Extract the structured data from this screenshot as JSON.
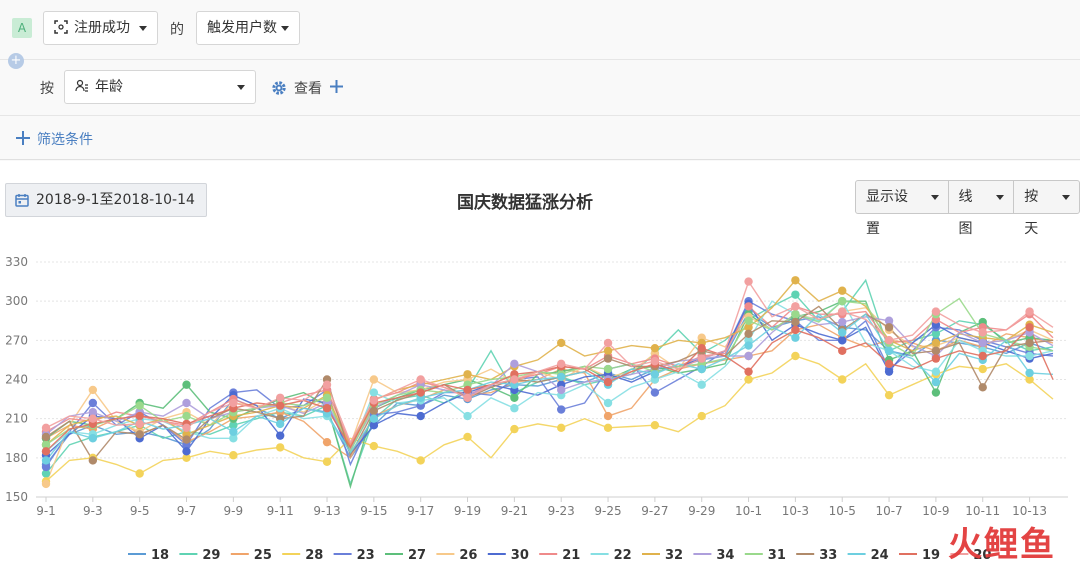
{
  "toolbar": {
    "badge": "A",
    "event_select": "注册成功",
    "of_label": "的",
    "metric_select": "触发用户数",
    "by_label": "按",
    "group_select": "年龄",
    "view_label": "查看",
    "filter_label": "筛选条件"
  },
  "controls": {
    "date_range": "2018-9-1至2018-10-14",
    "display_settings": "显示设置",
    "chart_type": "线图",
    "granularity": "按天"
  },
  "watermark": "火鲤鱼",
  "chart_data": {
    "type": "line",
    "title": "国庆数据猛涨分析",
    "xlabel": "",
    "ylabel": "",
    "ylim": [
      150,
      330
    ],
    "yticks": [
      150,
      180,
      210,
      240,
      270,
      300,
      330
    ],
    "grid": true,
    "legend_position": "bottom",
    "x": [
      "9-1",
      "9-2",
      "9-3",
      "9-4",
      "9-5",
      "9-6",
      "9-7",
      "9-8",
      "9-9",
      "9-10",
      "9-11",
      "9-12",
      "9-13",
      "9-14",
      "9-15",
      "9-16",
      "9-17",
      "9-18",
      "9-19",
      "9-20",
      "9-21",
      "9-22",
      "9-23",
      "9-24",
      "9-25",
      "9-26",
      "9-27",
      "9-28",
      "9-29",
      "9-30",
      "10-1",
      "10-2",
      "10-3",
      "10-4",
      "10-5",
      "10-6",
      "10-7",
      "10-8",
      "10-9",
      "10-10",
      "10-11",
      "10-12",
      "10-13",
      "10-14"
    ],
    "xticks": [
      "9-1",
      "9-3",
      "9-5",
      "9-7",
      "9-9",
      "9-11",
      "9-13",
      "9-15",
      "9-17",
      "9-19",
      "9-21",
      "9-23",
      "9-25",
      "9-27",
      "9-29",
      "10-1",
      "10-3",
      "10-5",
      "10-7",
      "10-9",
      "10-11",
      "10-13"
    ],
    "series": [
      {
        "name": "18",
        "color": "#5b9bd5",
        "values": [
          175,
          198,
          205,
          198,
          200,
          196,
          190,
          202,
          225,
          218,
          210,
          218,
          215,
          180,
          205,
          222,
          220,
          228,
          225,
          232,
          236,
          235,
          240,
          238,
          245,
          240,
          248,
          250,
          255,
          258,
          292,
          280,
          285,
          288,
          280,
          278,
          262,
          258,
          270,
          268,
          265,
          260,
          268,
          262
        ]
      },
      {
        "name": "29",
        "color": "#5fd3b3",
        "values": [
          168,
          190,
          196,
          200,
          205,
          195,
          200,
          198,
          205,
          210,
          215,
          212,
          220,
          160,
          210,
          225,
          228,
          222,
          232,
          262,
          230,
          238,
          242,
          236,
          240,
          244,
          260,
          278,
          260,
          270,
          286,
          296,
          305,
          285,
          292,
          316,
          262,
          270,
          275,
          285,
          282,
          270,
          262,
          265
        ]
      },
      {
        "name": "25",
        "color": "#f0a46a",
        "values": [
          195,
          205,
          202,
          210,
          198,
          205,
          192,
          200,
          210,
          212,
          215,
          208,
          192,
          180,
          212,
          220,
          225,
          232,
          228,
          230,
          238,
          240,
          248,
          245,
          212,
          218,
          240,
          248,
          252,
          255,
          258,
          262,
          278,
          282,
          272,
          265,
          270,
          268,
          262,
          270,
          265,
          275,
          272,
          268
        ]
      },
      {
        "name": "28",
        "color": "#f3d35a",
        "values": [
          162,
          178,
          180,
          175,
          168,
          178,
          180,
          185,
          182,
          186,
          188,
          180,
          177,
          195,
          189,
          185,
          178,
          190,
          196,
          180,
          202,
          206,
          203,
          210,
          203,
          204,
          205,
          200,
          212,
          220,
          240,
          245,
          258,
          252,
          240,
          252,
          228,
          236,
          244,
          250,
          248,
          252,
          240,
          225
        ]
      },
      {
        "name": "23",
        "color": "#6a7fd9",
        "values": [
          173,
          200,
          222,
          205,
          215,
          205,
          190,
          218,
          230,
          232,
          218,
          220,
          232,
          175,
          213,
          215,
          220,
          230,
          230,
          228,
          240,
          242,
          217,
          222,
          248,
          252,
          230,
          240,
          250,
          262,
          300,
          290,
          285,
          270,
          270,
          285,
          248,
          262,
          280,
          278,
          270,
          265,
          260,
          258
        ]
      },
      {
        "name": "27",
        "color": "#5dbf7b",
        "values": [
          195,
          208,
          205,
          210,
          222,
          218,
          236,
          215,
          210,
          218,
          225,
          230,
          220,
          158,
          218,
          226,
          232,
          236,
          240,
          234,
          226,
          244,
          246,
          250,
          240,
          248,
          250,
          245,
          248,
          252,
          290,
          278,
          288,
          292,
          300,
          300,
          255,
          262,
          230,
          276,
          284,
          268,
          272,
          270
        ]
      },
      {
        "name": "26",
        "color": "#f7c98a",
        "values": [
          160,
          205,
          232,
          208,
          200,
          210,
          215,
          205,
          222,
          220,
          220,
          215,
          225,
          190,
          240,
          230,
          232,
          238,
          240,
          248,
          238,
          246,
          240,
          250,
          242,
          246,
          260,
          248,
          272,
          265,
          288,
          278,
          290,
          286,
          292,
          295,
          278,
          265,
          266,
          272,
          268,
          270,
          278,
          270
        ]
      },
      {
        "name": "30",
        "color": "#4d6bd1",
        "values": [
          182,
          198,
          212,
          210,
          195,
          205,
          185,
          210,
          228,
          220,
          197,
          225,
          222,
          183,
          205,
          214,
          212,
          222,
          230,
          236,
          232,
          228,
          236,
          242,
          244,
          238,
          246,
          250,
          256,
          262,
          298,
          270,
          282,
          275,
          270,
          280,
          246,
          268,
          282,
          272,
          268,
          262,
          256,
          260
        ]
      },
      {
        "name": "21",
        "color": "#ef8a8a",
        "values": [
          200,
          210,
          208,
          215,
          212,
          208,
          205,
          215,
          225,
          218,
          222,
          228,
          232,
          190,
          225,
          230,
          238,
          234,
          228,
          236,
          240,
          244,
          250,
          248,
          258,
          252,
          256,
          250,
          258,
          260,
          296,
          280,
          296,
          290,
          290,
          292,
          268,
          270,
          286,
          276,
          280,
          278,
          290,
          272
        ]
      },
      {
        "name": "22",
        "color": "#86dfe3",
        "values": [
          185,
          200,
          198,
          205,
          210,
          208,
          200,
          195,
          195,
          212,
          218,
          210,
          212,
          185,
          230,
          222,
          224,
          226,
          212,
          226,
          218,
          230,
          228,
          236,
          222,
          234,
          240,
          246,
          236,
          250,
          270,
          300,
          290,
          285,
          300,
          268,
          262,
          250,
          246,
          270,
          262,
          258,
          258,
          262
        ]
      },
      {
        "name": "32",
        "color": "#e0b24c",
        "values": [
          190,
          205,
          210,
          212,
          205,
          210,
          198,
          205,
          212,
          215,
          220,
          218,
          228,
          188,
          224,
          232,
          236,
          240,
          244,
          240,
          250,
          255,
          268,
          258,
          262,
          266,
          264,
          270,
          268,
          272,
          280,
          295,
          316,
          300,
          308,
          296,
          270,
          262,
          268,
          275,
          272,
          270,
          282,
          276
        ]
      },
      {
        "name": "34",
        "color": "#ae9fdc",
        "values": [
          198,
          212,
          215,
          208,
          215,
          212,
          222,
          210,
          215,
          218,
          220,
          214,
          222,
          186,
          218,
          228,
          236,
          232,
          228,
          235,
          252,
          246,
          232,
          238,
          240,
          244,
          248,
          254,
          256,
          258,
          258,
          276,
          290,
          282,
          284,
          288,
          285,
          266,
          258,
          276,
          268,
          270,
          276,
          266
        ]
      },
      {
        "name": "31",
        "color": "#9ad98c",
        "values": [
          190,
          202,
          205,
          210,
          220,
          208,
          212,
          205,
          215,
          218,
          222,
          220,
          226,
          185,
          220,
          228,
          232,
          230,
          236,
          240,
          242,
          246,
          244,
          250,
          248,
          252,
          246,
          250,
          252,
          256,
          285,
          278,
          290,
          284,
          300,
          298,
          268,
          258,
          290,
          302,
          275,
          270,
          265,
          262
        ]
      },
      {
        "name": "33",
        "color": "#b08a6a",
        "values": [
          196,
          208,
          178,
          200,
          198,
          205,
          194,
          210,
          218,
          215,
          210,
          212,
          240,
          182,
          216,
          224,
          230,
          236,
          226,
          234,
          240,
          238,
          242,
          246,
          256,
          250,
          250,
          254,
          262,
          258,
          275,
          285,
          284,
          296,
          278,
          290,
          280,
          260,
          262,
          268,
          234,
          265,
          268,
          270
        ]
      },
      {
        "name": "24",
        "color": "#6dcfe0",
        "values": [
          178,
          200,
          195,
          200,
          208,
          202,
          205,
          210,
          200,
          212,
          206,
          218,
          214,
          184,
          210,
          220,
          226,
          230,
          232,
          238,
          236,
          240,
          242,
          246,
          236,
          248,
          244,
          252,
          248,
          256,
          266,
          280,
          272,
          290,
          276,
          290,
          262,
          256,
          238,
          260,
          255,
          270,
          245,
          244
        ]
      },
      {
        "name": "19",
        "color": "#e07060",
        "values": [
          185,
          202,
          206,
          210,
          212,
          210,
          206,
          212,
          218,
          222,
          220,
          224,
          218,
          188,
          222,
          226,
          230,
          236,
          232,
          236,
          244,
          246,
          250,
          248,
          238,
          246,
          252,
          246,
          264,
          258,
          246,
          268,
          278,
          272,
          262,
          268,
          252,
          248,
          256,
          262,
          258,
          262,
          280,
          240
        ]
      },
      {
        "name": "20",
        "color": "#f2a0a0",
        "values": [
          203,
          212,
          210,
          205,
          206,
          208,
          203,
          215,
          222,
          218,
          226,
          224,
          236,
          192,
          224,
          232,
          240,
          234,
          226,
          236,
          240,
          246,
          252,
          248,
          268,
          250,
          254,
          248,
          256,
          262,
          315,
          288,
          296,
          286,
          292,
          286,
          270,
          274,
          292,
          282,
          276,
          278,
          292,
          280
        ]
      }
    ],
    "dot_days": [
      0,
      2,
      4,
      6,
      8,
      10,
      12,
      14,
      16,
      18,
      20,
      22,
      24,
      26,
      28,
      30,
      32,
      34,
      36,
      38,
      40,
      42
    ]
  }
}
